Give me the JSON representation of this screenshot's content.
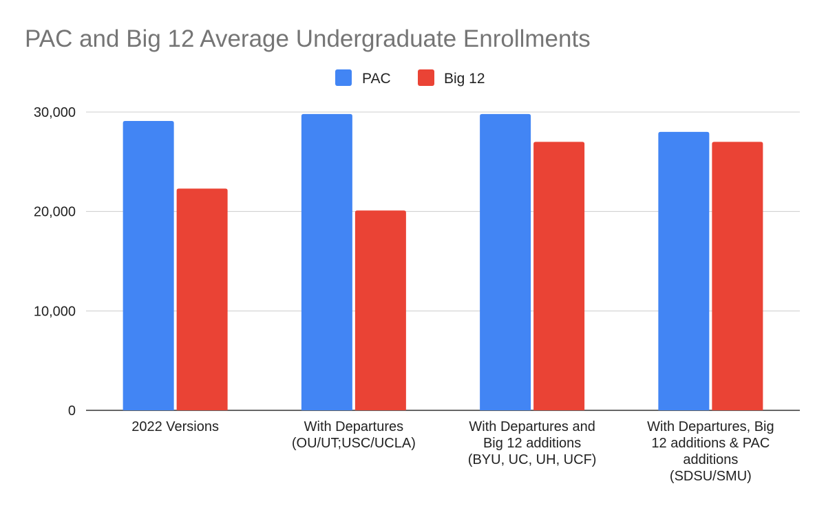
{
  "chart_data": {
    "type": "bar",
    "title": "PAC and Big 12 Average Undergraduate Enrollments",
    "xlabel": "",
    "ylabel": "",
    "categories": [
      [
        "2022 Versions"
      ],
      [
        "With Departures",
        "(OU/UT;USC/UCLA)"
      ],
      [
        "With Departures and",
        "Big 12 additions",
        "(BYU, UC, UH, UCF)"
      ],
      [
        "With Departures, Big",
        "12 additions & PAC",
        "additions",
        "(SDSU/SMU)"
      ]
    ],
    "series": [
      {
        "name": "PAC",
        "color": "#4285f4",
        "values": [
          29100,
          29800,
          29800,
          28000
        ]
      },
      {
        "name": "Big 12",
        "color": "#ea4335",
        "values": [
          22300,
          20100,
          27000,
          27000
        ]
      }
    ],
    "ylim": [
      0,
      30000
    ],
    "yticks": [
      0,
      10000,
      20000,
      30000
    ],
    "ytick_labels": [
      "0",
      "10,000",
      "20,000",
      "30,000"
    ],
    "grid": true,
    "legend_position": "top-center"
  }
}
